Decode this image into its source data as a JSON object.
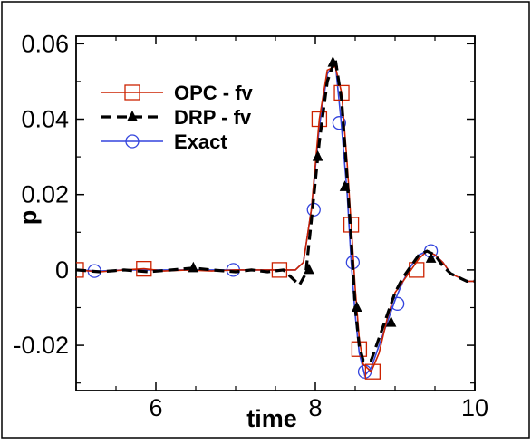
{
  "chart_data": {
    "type": "line",
    "title": "",
    "xlabel": "time",
    "ylabel": "p",
    "xlim": [
      5,
      10
    ],
    "ylim": [
      -0.032,
      0.062
    ],
    "xticks": [
      6,
      8,
      10
    ],
    "yticks": [
      -0.02,
      0,
      0.02,
      0.04,
      0.06
    ],
    "xtick_labels": [
      "6",
      "8",
      "10"
    ],
    "ytick_labels": [
      "-0.02",
      "0",
      "0.02",
      "0.04",
      "0.06"
    ],
    "legend_position": "top-left",
    "grid": false,
    "series": [
      {
        "name": "OPC - fv",
        "color": "#cc2200",
        "line_style": "solid",
        "marker": "square",
        "x": [
          5.0,
          5.3,
          5.6,
          5.85,
          6.1,
          6.4,
          6.7,
          7.0,
          7.3,
          7.55,
          7.75,
          7.85,
          7.95,
          8.05,
          8.15,
          8.25,
          8.33,
          8.4,
          8.45,
          8.5,
          8.55,
          8.6,
          8.7,
          8.8,
          8.9,
          9.0,
          9.1,
          9.2,
          9.3,
          9.4,
          9.5,
          9.6,
          9.7,
          9.8,
          9.9,
          10.0
        ],
        "y": [
          0.0,
          -0.0005,
          0.0,
          0.0003,
          -0.0003,
          0.0,
          -0.0003,
          0.0,
          0.0,
          0.0,
          0.0,
          0.002,
          0.016,
          0.04,
          0.053,
          0.054,
          0.047,
          0.028,
          0.012,
          -0.005,
          -0.018,
          -0.025,
          -0.027,
          -0.022,
          -0.013,
          -0.006,
          -0.003,
          0.0,
          0.003,
          0.005,
          0.004,
          0.002,
          -0.001,
          -0.002,
          -0.003,
          -0.003
        ],
        "marker_x": [
          5.0,
          5.85,
          7.55,
          8.05,
          8.33,
          8.45,
          8.55,
          8.72,
          9.27
        ],
        "marker_y": [
          0.0,
          0.0003,
          0.0,
          0.04,
          0.047,
          0.012,
          -0.021,
          -0.027,
          0.0
        ]
      },
      {
        "name": "DRP - fv",
        "color": "#000000",
        "line_style": "dashed",
        "marker": "triangle",
        "x": [
          5.0,
          5.3,
          5.6,
          5.9,
          6.2,
          6.47,
          6.7,
          7.0,
          7.2,
          7.4,
          7.6,
          7.7,
          7.8,
          7.88,
          7.95,
          8.05,
          8.15,
          8.25,
          8.33,
          8.4,
          8.45,
          8.5,
          8.55,
          8.6,
          8.7,
          8.8,
          8.9,
          9.0,
          9.1,
          9.2,
          9.3,
          9.4,
          9.5,
          9.6,
          9.7,
          9.8,
          9.9,
          10.0
        ],
        "y": [
          0.0,
          -0.0005,
          0.0,
          -0.0005,
          0.0,
          0.0005,
          0.0,
          -0.0005,
          0.0,
          -0.0005,
          0.0,
          -0.002,
          -0.004,
          -0.001,
          0.013,
          0.034,
          0.05,
          0.056,
          0.045,
          0.024,
          0.008,
          -0.01,
          -0.02,
          -0.024,
          -0.024,
          -0.018,
          -0.012,
          -0.006,
          -0.002,
          0.001,
          0.004,
          0.005,
          0.004,
          0.001,
          -0.001,
          -0.002,
          -0.003,
          -0.003
        ],
        "marker_x": [
          6.47,
          7.92,
          8.03,
          8.22,
          8.37,
          8.52,
          8.95,
          9.45
        ],
        "marker_y": [
          0.0005,
          0.0,
          0.03,
          0.055,
          0.022,
          -0.01,
          -0.014,
          0.003
        ]
      },
      {
        "name": "Exact",
        "color": "#3344dd",
        "line_style": "solid",
        "marker": "circle",
        "x": [
          5.0,
          5.3,
          5.6,
          5.9,
          6.2,
          6.5,
          6.8,
          7.0,
          7.3,
          7.6,
          7.75,
          7.85,
          7.95,
          8.05,
          8.15,
          8.25,
          8.32,
          8.4,
          8.45,
          8.5,
          8.55,
          8.62,
          8.7,
          8.8,
          8.9,
          9.0,
          9.1,
          9.2,
          9.3,
          9.4,
          9.5,
          9.6,
          9.7,
          9.8,
          9.9,
          10.0
        ],
        "y": [
          0.0,
          -0.0003,
          0.0,
          0.0,
          0.0,
          0.0,
          0.0,
          0.0,
          0.0,
          0.0,
          0.0,
          0.002,
          0.016,
          0.038,
          0.052,
          0.055,
          0.04,
          0.02,
          0.002,
          -0.012,
          -0.022,
          -0.028,
          -0.026,
          -0.02,
          -0.014,
          -0.008,
          -0.003,
          0.001,
          0.004,
          0.005,
          0.004,
          0.002,
          -0.001,
          -0.002,
          -0.003,
          -0.003
        ],
        "marker_x": [
          5.23,
          6.97,
          7.98,
          8.3,
          8.47,
          8.62,
          9.03,
          9.45
        ],
        "marker_y": [
          -0.0003,
          0.0,
          0.016,
          0.039,
          0.002,
          -0.027,
          -0.009,
          0.005
        ]
      }
    ]
  }
}
